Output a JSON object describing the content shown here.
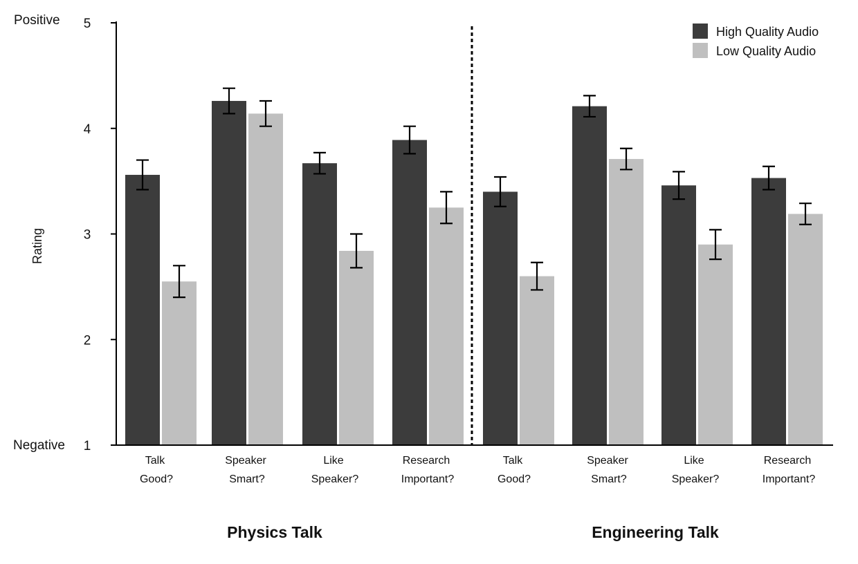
{
  "chart_data": {
    "type": "bar",
    "ylabel": "Rating",
    "ylim": [
      1,
      5
    ],
    "yticks": [
      1,
      2,
      3,
      4,
      5
    ],
    "y_anchor_labels": {
      "top": "Positive",
      "bottom": "Negative"
    },
    "grid": false,
    "legend_position": "top-right",
    "groups": [
      {
        "name": "Physics Talk",
        "categories": [
          [
            "Talk",
            "Good?"
          ],
          [
            "Speaker",
            "Smart?"
          ],
          [
            "Like",
            "Speaker?"
          ],
          [
            "Research",
            "Important?"
          ]
        ]
      },
      {
        "name": "Engineering Talk",
        "categories": [
          [
            "Talk",
            "Good?"
          ],
          [
            "Speaker",
            "Smart?"
          ],
          [
            "Like",
            "Speaker?"
          ],
          [
            "Research",
            "Important?"
          ]
        ]
      }
    ],
    "series": [
      {
        "name": "High Quality Audio",
        "color": "#3c3c3c",
        "values": [
          3.56,
          4.26,
          3.67,
          3.89,
          3.4,
          4.21,
          3.46,
          3.53
        ],
        "errors": [
          0.14,
          0.12,
          0.1,
          0.13,
          0.14,
          0.1,
          0.13,
          0.11
        ]
      },
      {
        "name": "Low Quality Audio",
        "color": "#bfbfbf",
        "values": [
          2.55,
          4.14,
          2.84,
          3.25,
          2.6,
          3.71,
          2.9,
          3.19
        ],
        "errors": [
          0.15,
          0.12,
          0.16,
          0.15,
          0.13,
          0.1,
          0.14,
          0.1
        ]
      }
    ]
  }
}
